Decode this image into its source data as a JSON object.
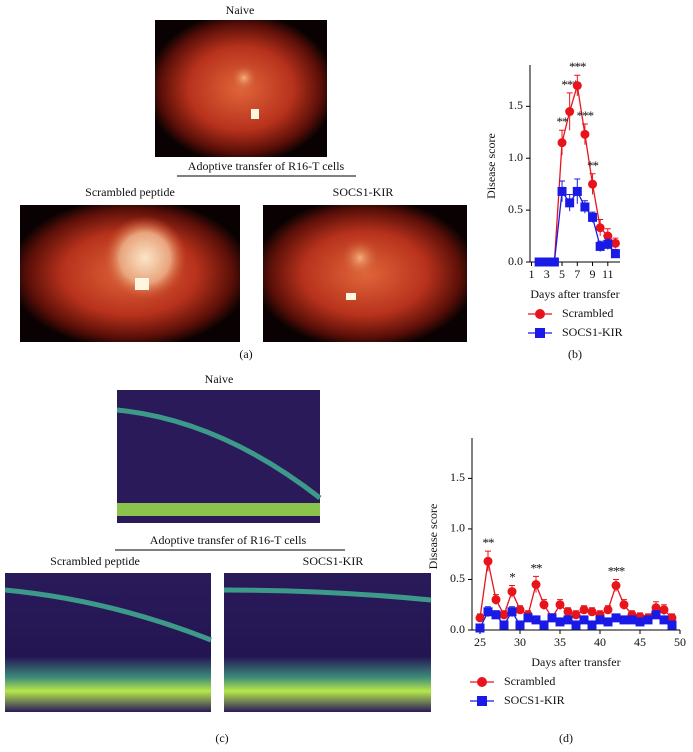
{
  "panel_a": {
    "naive_label": "Naive",
    "transfer_label": "Adoptive transfer of R16-T cells",
    "left_label": "Scrambled peptide",
    "right_label": "SOCS1-KIR",
    "caption": "(a)"
  },
  "panel_c": {
    "naive_label": "Naive",
    "transfer_label": "Adoptive transfer of R16-T cells",
    "left_label": "Scrambled peptide",
    "right_label": "SOCS1-KIR",
    "caption": "(c)"
  },
  "chart_data": [
    {
      "type": "line",
      "caption": "(b)",
      "xlabel": "Days after transfer",
      "ylabel": "Disease score",
      "x": [
        2,
        3,
        4,
        5,
        6,
        7,
        8,
        9,
        10,
        11,
        12
      ],
      "xlim": [
        0.8,
        12.6
      ],
      "xticks": [
        1,
        3,
        5,
        7,
        9,
        11
      ],
      "ylim": [
        0,
        1.85
      ],
      "yticks": [
        {
          "value": 0,
          "label": "0.0"
        },
        0.5,
        {
          "value": 1,
          "label": "1.0"
        },
        1.5
      ],
      "series": [
        {
          "name": "Scrambled",
          "color": "#e8141c",
          "marker": "circle",
          "values": [
            0,
            0,
            0,
            1.15,
            1.45,
            1.7,
            1.23,
            0.75,
            0.33,
            0.25,
            0.18
          ],
          "errors": [
            0,
            0,
            0,
            0.12,
            0.18,
            0.1,
            0.1,
            0.1,
            0.08,
            0.07,
            0.05
          ],
          "annotations": [
            null,
            null,
            null,
            "**",
            "***",
            "***",
            "***",
            "**",
            null,
            null,
            null
          ]
        },
        {
          "name": "SOCS1-KIR",
          "color": "#1a1ae6",
          "marker": "square",
          "values": [
            0,
            0,
            0,
            0.68,
            0.57,
            0.68,
            0.53,
            0.43,
            0.15,
            0.17,
            0.08
          ],
          "errors": [
            0,
            0,
            0,
            0.1,
            0.08,
            0.12,
            0.06,
            0.05,
            0.05,
            0.05,
            0.04
          ]
        }
      ]
    },
    {
      "type": "line",
      "caption": "(d)",
      "xlabel": "Days after transfer",
      "ylabel": "Disease score",
      "x": [
        25,
        26,
        27,
        28,
        29,
        30,
        31,
        32,
        33,
        34,
        35,
        36,
        37,
        38,
        39,
        40,
        41,
        42,
        43,
        44,
        45,
        46,
        47,
        48,
        49
      ],
      "xlim": [
        24,
        50
      ],
      "xticks": [
        25,
        30,
        35,
        40,
        45,
        50
      ],
      "ylim": [
        0,
        1.85
      ],
      "yticks": [
        {
          "value": 0,
          "label": "0.0"
        },
        0.5,
        {
          "value": 1,
          "label": "1.0"
        },
        1.5
      ],
      "series": [
        {
          "name": "Scrambled",
          "color": "#e8141c",
          "marker": "circle",
          "values": [
            0.12,
            0.68,
            0.3,
            0.15,
            0.38,
            0.2,
            0.15,
            0.45,
            0.25,
            0.12,
            0.25,
            0.18,
            0.15,
            0.2,
            0.18,
            0.15,
            0.2,
            0.44,
            0.25,
            0.15,
            0.13,
            0.12,
            0.22,
            0.2,
            0.12
          ],
          "errors": [
            0.04,
            0.1,
            0.05,
            0.04,
            0.06,
            0.04,
            0.04,
            0.08,
            0.05,
            0.04,
            0.05,
            0.04,
            0.04,
            0.04,
            0.04,
            0.04,
            0.04,
            0.06,
            0.05,
            0.04,
            0.04,
            0.04,
            0.06,
            0.05,
            0.04
          ],
          "annotations": [
            null,
            "**",
            null,
            null,
            "*",
            null,
            null,
            "**",
            null,
            null,
            null,
            null,
            null,
            null,
            null,
            null,
            null,
            "***",
            null,
            null,
            null,
            null,
            null,
            null,
            null
          ]
        },
        {
          "name": "SOCS1-KIR",
          "color": "#1a1ae6",
          "marker": "square",
          "values": [
            0.02,
            0.18,
            0.15,
            0.05,
            0.18,
            0.05,
            0.12,
            0.1,
            0.05,
            0.12,
            0.08,
            0.1,
            0.05,
            0.1,
            0.05,
            0.1,
            0.08,
            0.12,
            0.1,
            0.1,
            0.08,
            0.1,
            0.15,
            0.1,
            0.05
          ],
          "errors": [
            0.02,
            0.05,
            0.04,
            0.03,
            0.05,
            0.03,
            0.03,
            0.03,
            0.03,
            0.03,
            0.03,
            0.03,
            0.03,
            0.03,
            0.03,
            0.03,
            0.03,
            0.03,
            0.03,
            0.03,
            0.03,
            0.03,
            0.04,
            0.03,
            0.03
          ]
        }
      ]
    }
  ]
}
